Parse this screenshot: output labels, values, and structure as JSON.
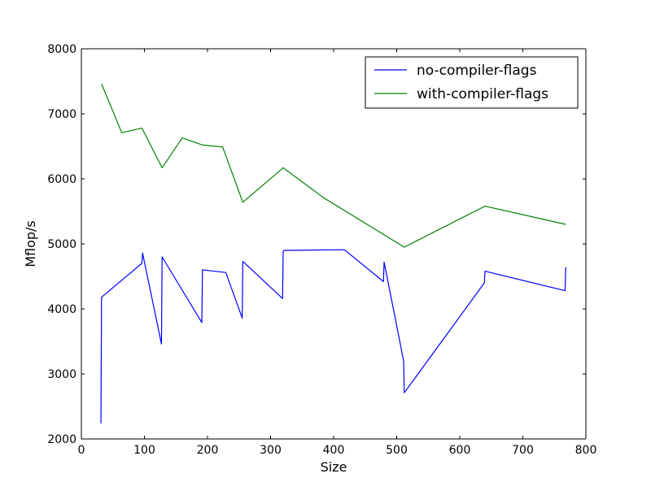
{
  "chart_data": {
    "type": "line",
    "title": "",
    "xlabel": "Size",
    "ylabel": "Mflop/s",
    "xlim": [
      0,
      800
    ],
    "ylim": [
      2000,
      8000
    ],
    "xticks": [
      0,
      100,
      200,
      300,
      400,
      500,
      600,
      700,
      800
    ],
    "yticks": [
      2000,
      3000,
      4000,
      5000,
      6000,
      7000,
      8000
    ],
    "grid": false,
    "legend_position": "top-right",
    "series": [
      {
        "name": "no-compiler-flags",
        "color": "#0000ff",
        "x": [
          31,
          32,
          96,
          97,
          127,
          128,
          191,
          192,
          229,
          255,
          256,
          319,
          320,
          321,
          417,
          479,
          480,
          511,
          512,
          639,
          640,
          767,
          768
        ],
        "y": [
          2240,
          4180,
          4700,
          4860,
          3460,
          4800,
          3790,
          4600,
          4560,
          3860,
          4730,
          4160,
          4880,
          4900,
          4910,
          4420,
          4720,
          3200,
          2710,
          4400,
          4580,
          4280,
          4640
        ]
      },
      {
        "name": "with-compiler-flags",
        "color": "#008000",
        "x": [
          32,
          64,
          96,
          128,
          160,
          192,
          224,
          256,
          320,
          384,
          512,
          640,
          768
        ],
        "y": [
          7460,
          6710,
          6780,
          6170,
          6630,
          6520,
          6490,
          5640,
          6170,
          5710,
          4950,
          5580,
          5300
        ]
      }
    ]
  }
}
